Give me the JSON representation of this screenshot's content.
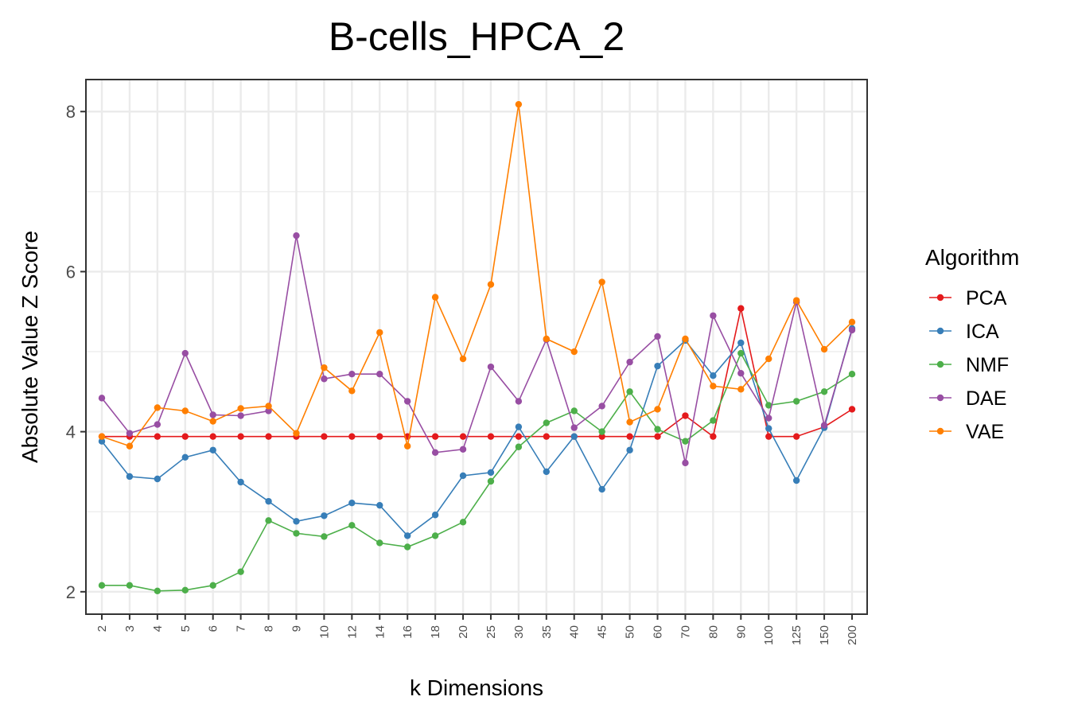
{
  "chart_data": {
    "type": "line",
    "title": "B-cells_HPCA_2",
    "xlabel": "k Dimensions",
    "ylabel": "Absolute Value Z Score",
    "categories": [
      "2",
      "3",
      "4",
      "5",
      "6",
      "7",
      "8",
      "9",
      "10",
      "12",
      "14",
      "16",
      "18",
      "20",
      "25",
      "30",
      "35",
      "40",
      "45",
      "50",
      "60",
      "70",
      "80",
      "90",
      "100",
      "125",
      "150",
      "200"
    ],
    "y_ticks": [
      2,
      4,
      6,
      8
    ],
    "ylim": [
      1.72,
      8.4
    ],
    "grid": true,
    "legend_title": "Algorithm",
    "legend_position": "right",
    "series": [
      {
        "name": "PCA",
        "color": "#e41a1c",
        "values": [
          3.94,
          3.94,
          3.94,
          3.94,
          3.94,
          3.94,
          3.94,
          3.94,
          3.94,
          3.94,
          3.94,
          3.94,
          3.94,
          3.94,
          3.94,
          3.94,
          3.94,
          3.94,
          3.94,
          3.94,
          3.94,
          4.2,
          3.94,
          5.54,
          3.94,
          3.94,
          4.06,
          4.28
        ]
      },
      {
        "name": "ICA",
        "color": "#377eb8",
        "values": [
          3.88,
          3.44,
          3.41,
          3.68,
          3.77,
          3.37,
          3.13,
          2.88,
          2.95,
          3.11,
          3.08,
          2.7,
          2.96,
          3.45,
          3.49,
          4.06,
          3.5,
          3.94,
          3.28,
          3.77,
          4.82,
          5.14,
          4.7,
          5.11,
          4.04,
          3.39,
          4.05,
          5.29
        ]
      },
      {
        "name": "NMF",
        "color": "#4daf4a",
        "values": [
          2.08,
          2.08,
          2.01,
          2.02,
          2.08,
          2.25,
          2.89,
          2.73,
          2.69,
          2.83,
          2.61,
          2.56,
          2.7,
          2.87,
          3.38,
          3.81,
          4.11,
          4.26,
          4.0,
          4.5,
          4.03,
          3.88,
          4.14,
          4.98,
          4.33,
          4.38,
          4.5,
          4.72
        ]
      },
      {
        "name": "DAE",
        "color": "#984ea3",
        "values": [
          4.42,
          3.98,
          4.09,
          4.98,
          4.21,
          4.2,
          4.26,
          6.45,
          4.66,
          4.72,
          4.72,
          4.38,
          3.74,
          3.78,
          4.81,
          4.38,
          5.15,
          4.05,
          4.32,
          4.87,
          5.19,
          3.61,
          5.45,
          4.73,
          4.17,
          5.62,
          4.08,
          5.27
        ]
      },
      {
        "name": "VAE",
        "color": "#ff7f00",
        "values": [
          3.94,
          3.82,
          4.3,
          4.26,
          4.13,
          4.29,
          4.32,
          3.98,
          4.8,
          4.51,
          5.24,
          3.82,
          5.68,
          4.91,
          5.84,
          8.09,
          5.16,
          5.0,
          5.87,
          4.12,
          4.28,
          5.16,
          4.57,
          4.53,
          4.91,
          5.64,
          5.03,
          5.37
        ]
      }
    ]
  }
}
